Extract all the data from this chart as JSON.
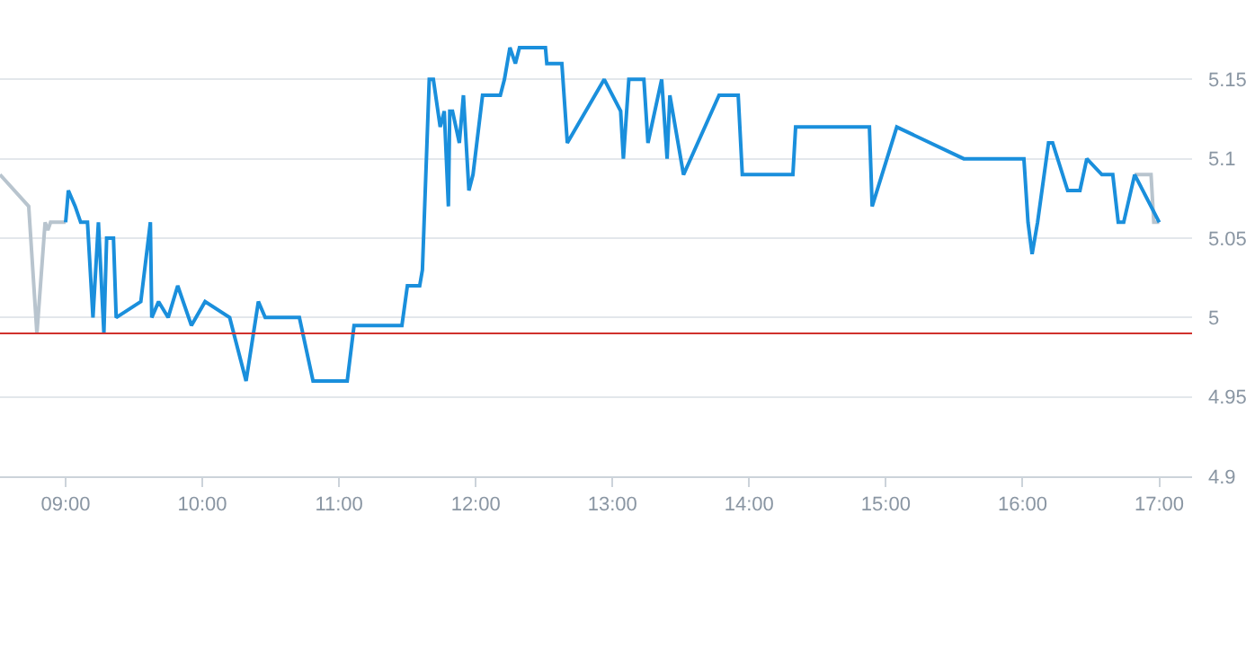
{
  "chart_data": {
    "type": "line",
    "xlim": [
      8.52,
      17.24
    ],
    "ylim": [
      4.9,
      5.2
    ],
    "xticks": [
      {
        "value": 9,
        "label": "09:00"
      },
      {
        "value": 10,
        "label": "10:00"
      },
      {
        "value": 11,
        "label": "11:00"
      },
      {
        "value": 12,
        "label": "12:00"
      },
      {
        "value": 13,
        "label": "13:00"
      },
      {
        "value": 14,
        "label": "14:00"
      },
      {
        "value": 15,
        "label": "15:00"
      },
      {
        "value": 16,
        "label": "16:00"
      },
      {
        "value": 17,
        "label": "17:00"
      }
    ],
    "yticks": [
      4.9,
      4.95,
      5,
      5.05,
      5.1,
      5.15
    ],
    "grid": "y",
    "marker": "none",
    "line_style": "solid",
    "series": [
      {
        "color": "#b8c4ce",
        "x": [
          8.52,
          8.73,
          8.79,
          8.85,
          8.87,
          8.89,
          9.0,
          12.9,
          16.82,
          16.94,
          16.96,
          17.0
        ],
        "values": [
          5.09,
          5.07,
          4.99,
          5.06,
          5.055,
          5.06,
          5.06,
          null,
          5.09,
          5.09,
          5.06,
          5.06
        ]
      },
      {
        "color": "#1a8fdc",
        "x": [
          9.0,
          9.02,
          9.07,
          9.11,
          9.16,
          9.2,
          9.24,
          9.28,
          9.3,
          9.35,
          9.37,
          9.55,
          9.62,
          9.63,
          9.68,
          9.75,
          9.82,
          9.92,
          10.02,
          10.2,
          10.32,
          10.41,
          10.46,
          10.71,
          10.81,
          11.06,
          11.11,
          11.15,
          11.46,
          11.5,
          11.59,
          11.61,
          11.66,
          11.69,
          11.74,
          11.77,
          11.8,
          11.81,
          11.83,
          11.88,
          11.91,
          11.95,
          11.98,
          12.05,
          12.18,
          12.21,
          12.25,
          12.29,
          12.32,
          12.51,
          12.52,
          12.63,
          12.67,
          12.94,
          13.06,
          13.08,
          13.12,
          13.23,
          13.26,
          13.36,
          13.4,
          13.42,
          13.52,
          13.78,
          13.92,
          13.95,
          14.32,
          14.34,
          14.88,
          14.9,
          15.08,
          15.57,
          16.01,
          16.04,
          16.07,
          16.11,
          16.19,
          16.22,
          16.33,
          16.42,
          16.47,
          16.58,
          16.66,
          16.7,
          16.74,
          16.82,
          17.0
        ],
        "values": [
          5.06,
          5.08,
          5.07,
          5.06,
          5.06,
          5.0,
          5.06,
          4.99,
          5.05,
          5.05,
          5.0,
          5.01,
          5.06,
          5.0,
          5.01,
          5.0,
          5.02,
          4.995,
          5.01,
          5.0,
          4.96,
          5.01,
          5.0,
          5.0,
          4.96,
          4.96,
          4.995,
          4.995,
          4.995,
          5.02,
          5.02,
          5.03,
          5.15,
          5.15,
          5.12,
          5.13,
          5.07,
          5.13,
          5.13,
          5.11,
          5.14,
          5.08,
          5.09,
          5.14,
          5.14,
          5.15,
          5.17,
          5.16,
          5.17,
          5.17,
          5.16,
          5.16,
          5.11,
          5.15,
          5.13,
          5.1,
          5.15,
          5.15,
          5.11,
          5.15,
          5.1,
          5.14,
          5.09,
          5.14,
          5.14,
          5.09,
          5.09,
          5.12,
          5.12,
          5.07,
          5.12,
          5.1,
          5.1,
          5.06,
          5.04,
          5.06,
          5.11,
          5.11,
          5.08,
          5.08,
          5.1,
          5.09,
          5.09,
          5.06,
          5.06,
          5.09,
          5.06
        ]
      }
    ],
    "ref_lines": [
      {
        "axis": "y",
        "value": 4.99,
        "color": "#d0312d"
      }
    ]
  }
}
